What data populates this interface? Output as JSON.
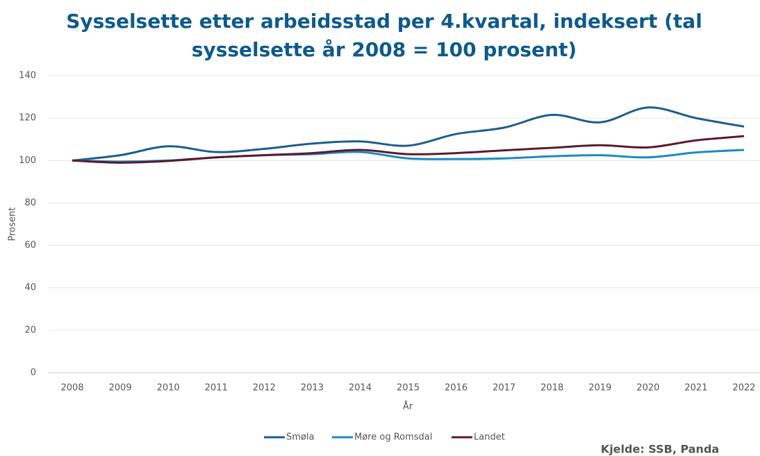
{
  "chart_data": {
    "type": "line",
    "title": [
      "Sysselsette etter arbeidsstad per 4.kvartal, indeksert (tal",
      "sysselsette år 2008 = 100 prosent)"
    ],
    "x_label": "År",
    "y_label": "Prosent",
    "source": "Kjelde: SSB, Panda",
    "categories": [
      "2008",
      "2009",
      "2010",
      "2011",
      "2012",
      "2013",
      "2014",
      "2015",
      "2016",
      "2017",
      "2018",
      "2019",
      "2020",
      "2021",
      "2022"
    ],
    "series": [
      {
        "name": "Smøla",
        "color": "#1b5e8e",
        "values": [
          100,
          102.5,
          106.7,
          104,
          105.5,
          108,
          109,
          107,
          112.5,
          115.5,
          121.5,
          118,
          125,
          120,
          116
        ]
      },
      {
        "name": "Møre og Romsdal",
        "color": "#1f8ac0",
        "values": [
          100,
          99.5,
          100,
          101.5,
          102.5,
          103,
          104,
          101,
          100.7,
          101,
          102,
          102.5,
          101.5,
          103.8,
          105
        ]
      },
      {
        "name": "Landet",
        "color": "#5b1a2e",
        "values": [
          100,
          99,
          99.8,
          101.5,
          102.5,
          103.5,
          105,
          103,
          103.5,
          104.8,
          106,
          107.2,
          106.2,
          109.5,
          111.5
        ]
      }
    ],
    "ylim": [
      0,
      140
    ],
    "yticks": [
      0,
      20,
      40,
      60,
      80,
      100,
      120,
      140
    ],
    "grid": true,
    "legend": "bottom"
  }
}
